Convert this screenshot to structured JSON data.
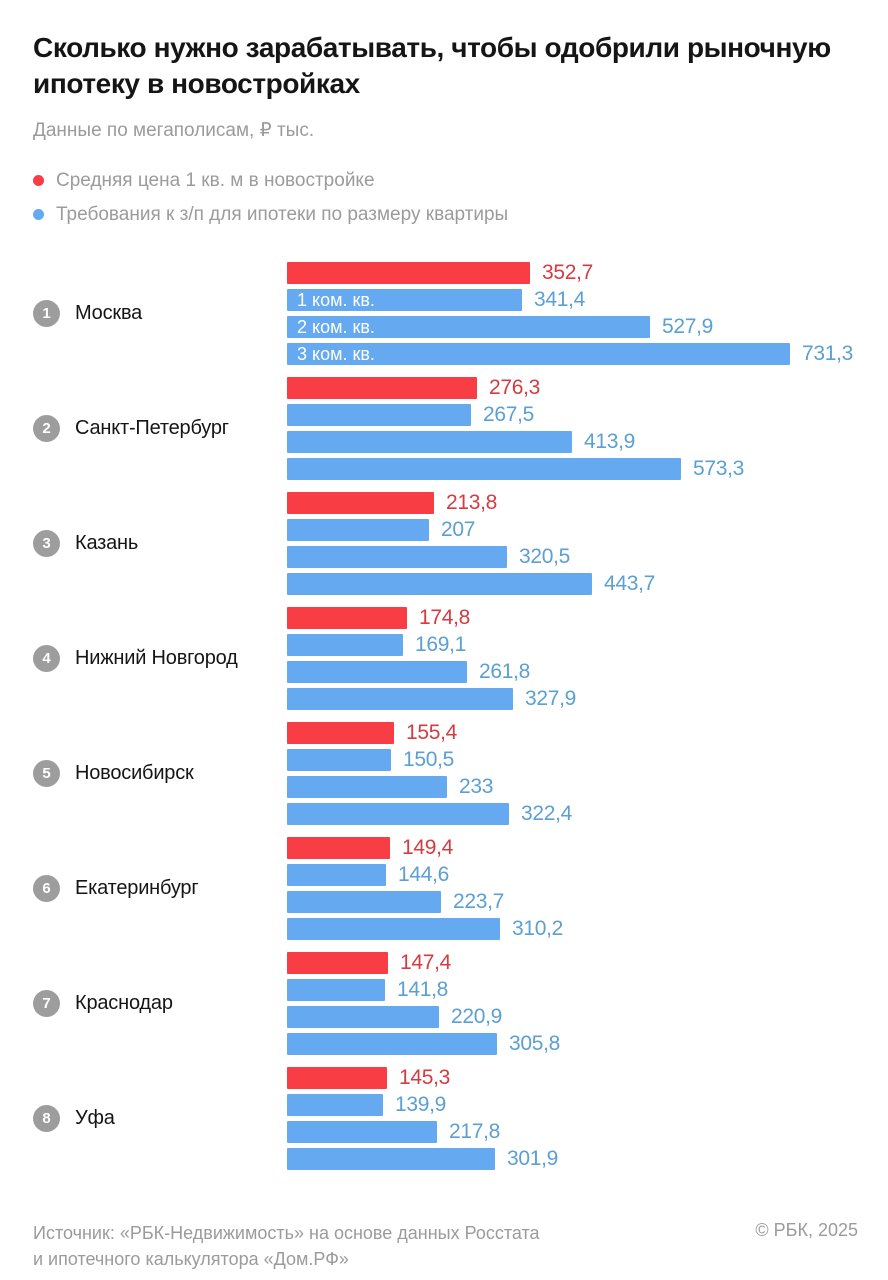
{
  "header": {
    "title": "Сколько нужно зарабатывать, чтобы одобрили рыночную ипотеку в новостройках",
    "subtitle": "Данные по мегаполисам, ₽ тыс.",
    "legend": [
      {
        "label": "Средняя цена 1 кв. м в новостройке",
        "color": "#f83d44"
      },
      {
        "label": "Требования к з/п для ипотеки по размеру квартиры",
        "color": "#65a9f0"
      }
    ]
  },
  "chart_data": {
    "type": "bar",
    "orientation": "horizontal",
    "unit": "₽ тыс.",
    "value_axis_max": 731.3,
    "colors": {
      "price": "#f83d44",
      "salary": "#65a9f0"
    },
    "series": [
      {
        "name": "Средняя цена 1 кв. м в новостройке",
        "key": "price"
      },
      {
        "name": "Требования к з/п для ипотеки по размеру квартиры",
        "key": "salary",
        "apartment_sizes": [
          "1 ком. кв.",
          "2 ком. кв.",
          "3 ком. кв."
        ]
      }
    ],
    "groups": [
      {
        "rank": "1",
        "city": "Москва",
        "price": {
          "display": "352,7",
          "value": 352.7
        },
        "salary": [
          {
            "label": "1 ком. кв.",
            "display": "341,4",
            "value": 341.4
          },
          {
            "label": "2 ком. кв.",
            "display": "527,9",
            "value": 527.9
          },
          {
            "label": "3 ком. кв.",
            "display": "731,3",
            "value": 731.3
          }
        ],
        "show_inner_labels": true
      },
      {
        "rank": "2",
        "city": "Санкт-Петербург",
        "price": {
          "display": "276,3",
          "value": 276.3
        },
        "salary": [
          {
            "label": "1 ком. кв.",
            "display": "267,5",
            "value": 267.5
          },
          {
            "label": "2 ком. кв.",
            "display": "413,9",
            "value": 413.9
          },
          {
            "label": "3 ком. кв.",
            "display": "573,3",
            "value": 573.3
          }
        ],
        "show_inner_labels": false
      },
      {
        "rank": "3",
        "city": "Казань",
        "price": {
          "display": "213,8",
          "value": 213.8
        },
        "salary": [
          {
            "label": "1 ком. кв.",
            "display": "207",
            "value": 207
          },
          {
            "label": "2 ком. кв.",
            "display": "320,5",
            "value": 320.5
          },
          {
            "label": "3 ком. кв.",
            "display": "443,7",
            "value": 443.7
          }
        ],
        "show_inner_labels": false
      },
      {
        "rank": "4",
        "city": "Нижний Новгород",
        "price": {
          "display": "174,8",
          "value": 174.8
        },
        "salary": [
          {
            "label": "1 ком. кв.",
            "display": "169,1",
            "value": 169.1
          },
          {
            "label": "2 ком. кв.",
            "display": "261,8",
            "value": 261.8
          },
          {
            "label": "3 ком. кв.",
            "display": "327,9",
            "value": 327.9
          }
        ],
        "show_inner_labels": false
      },
      {
        "rank": "5",
        "city": "Новосибирск",
        "price": {
          "display": "155,4",
          "value": 155.4
        },
        "salary": [
          {
            "label": "1 ком. кв.",
            "display": "150,5",
            "value": 150.5
          },
          {
            "label": "2 ком. кв.",
            "display": "233",
            "value": 233
          },
          {
            "label": "3 ком. кв.",
            "display": "322,4",
            "value": 322.4
          }
        ],
        "show_inner_labels": false
      },
      {
        "rank": "6",
        "city": "Екатеринбург",
        "price": {
          "display": "149,4",
          "value": 149.4
        },
        "salary": [
          {
            "label": "1 ком. кв.",
            "display": "144,6",
            "value": 144.6
          },
          {
            "label": "2 ком. кв.",
            "display": "223,7",
            "value": 223.7
          },
          {
            "label": "3 ком. кв.",
            "display": "310,2",
            "value": 310.2
          }
        ],
        "show_inner_labels": false
      },
      {
        "rank": "7",
        "city": "Краснодар",
        "price": {
          "display": "147,4",
          "value": 147.4
        },
        "salary": [
          {
            "label": "1 ком. кв.",
            "display": "141,8",
            "value": 141.8
          },
          {
            "label": "2 ком. кв.",
            "display": "220,9",
            "value": 220.9
          },
          {
            "label": "3 ком. кв.",
            "display": "305,8",
            "value": 305.8
          }
        ],
        "show_inner_labels": false
      },
      {
        "rank": "8",
        "city": "Уфа",
        "price": {
          "display": "145,3",
          "value": 145.3
        },
        "salary": [
          {
            "label": "1 ком. кв.",
            "display": "139,9",
            "value": 139.9
          },
          {
            "label": "2 ком. кв.",
            "display": "217,8",
            "value": 217.8
          },
          {
            "label": "3 ком. кв.",
            "display": "301,9",
            "value": 301.9
          }
        ],
        "show_inner_labels": false
      }
    ]
  },
  "footer": {
    "source_line1": "Источник: «РБК-Недвижимость» на основе данных Росстата",
    "source_line2": "и ипотечного калькулятора «Дом.РФ»",
    "copyright": "© РБК, 2025"
  }
}
